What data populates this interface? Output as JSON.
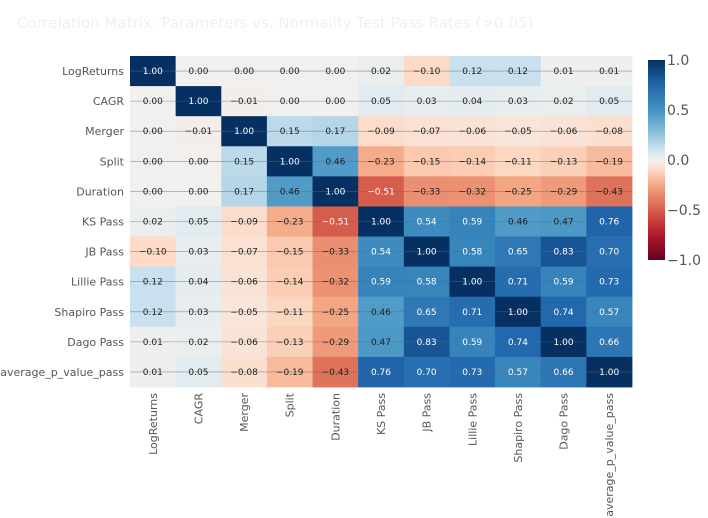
{
  "chart_data": {
    "type": "heatmap",
    "title": "Correlation Matrix: Parameters vs. Normality Test Pass Rates (>0.05)",
    "labels": [
      "LogReturns",
      "CAGR",
      "Merger",
      "Split",
      "Duration",
      "KS Pass",
      "JB Pass",
      "Lillie Pass",
      "Shapiro Pass",
      "Dago Pass",
      "average_p_value_pass"
    ],
    "values": [
      [
        1.0,
        0.0,
        0.0,
        0.0,
        0.0,
        0.02,
        -0.1,
        0.12,
        0.12,
        0.01,
        0.01
      ],
      [
        0.0,
        1.0,
        -0.01,
        0.0,
        0.0,
        0.05,
        0.03,
        0.04,
        0.03,
        0.02,
        0.05
      ],
      [
        0.0,
        -0.01,
        1.0,
        0.15,
        0.17,
        -0.09,
        -0.07,
        -0.06,
        -0.05,
        -0.06,
        -0.08
      ],
      [
        0.0,
        0.0,
        0.15,
        1.0,
        0.46,
        -0.23,
        -0.15,
        -0.14,
        -0.11,
        -0.13,
        -0.19
      ],
      [
        0.0,
        0.0,
        0.17,
        0.46,
        1.0,
        -0.51,
        -0.33,
        -0.32,
        -0.25,
        -0.29,
        -0.43
      ],
      [
        0.02,
        0.05,
        -0.09,
        -0.23,
        -0.51,
        1.0,
        0.54,
        0.59,
        0.46,
        0.47,
        0.76
      ],
      [
        -0.1,
        0.03,
        -0.07,
        -0.15,
        -0.33,
        0.54,
        1.0,
        0.58,
        0.65,
        0.83,
        0.7
      ],
      [
        0.12,
        0.04,
        -0.06,
        -0.14,
        -0.32,
        0.59,
        0.58,
        1.0,
        0.71,
        0.59,
        0.73
      ],
      [
        0.12,
        0.03,
        -0.05,
        -0.11,
        -0.25,
        0.46,
        0.65,
        0.71,
        1.0,
        0.74,
        0.57
      ],
      [
        0.01,
        0.02,
        -0.06,
        -0.13,
        -0.29,
        0.47,
        0.83,
        0.59,
        0.74,
        1.0,
        0.66
      ],
      [
        0.01,
        0.05,
        -0.08,
        -0.19,
        -0.43,
        0.76,
        0.7,
        0.73,
        0.57,
        0.66,
        1.0
      ]
    ],
    "value_format": "2 decimals",
    "colorscale": "RdBu diverging",
    "color_range": [
      -1,
      1
    ],
    "colorbar_ticks": [
      "1.0",
      "0.5",
      "0.0",
      "−0.5",
      "−1.0"
    ],
    "colorbar_tick_values": [
      1,
      0.5,
      0,
      -0.5,
      -1
    ],
    "colors": {
      "negative": "#67001f",
      "positive": "#053061",
      "neutral": "#f7f7f7"
    }
  }
}
